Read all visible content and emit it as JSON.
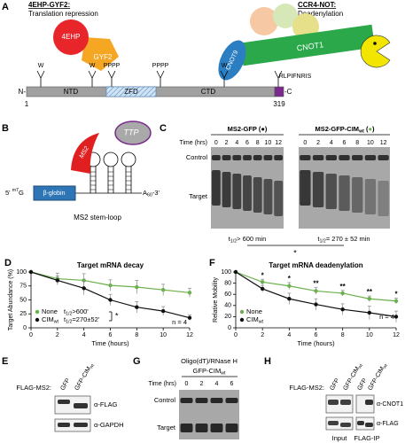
{
  "panels": {
    "A": {
      "letter": "A",
      "left_title": "4EHP-GYF2:",
      "left_subtitle": "Translation repression",
      "right_title": "CCR4-NOT:",
      "right_subtitle": "Deadenylation",
      "proteins": [
        "4EHP",
        "GYF2",
        "CNOT9",
        "CNOT1"
      ],
      "n_term": "N-",
      "c_term": "-C",
      "start": 1,
      "end": 319,
      "domains": [
        "NTD",
        "ZFD",
        "CTD"
      ],
      "motif": "RLPIFNRIS",
      "flags": [
        "W",
        "W",
        "PPPP",
        "PPPP",
        "W"
      ]
    },
    "B": {
      "letter": "B",
      "protein": "TTP",
      "tag": "MS2",
      "gene": "β-globin",
      "five_prime": [
        "5' ",
        "m7",
        "G"
      ],
      "three_prime": [
        "A",
        "60",
        "-3'"
      ],
      "stem_loop_label": "MS2 stem-loop"
    },
    "C": {
      "letter": "C",
      "title_1": "MS2-GFP (●)",
      "title_2": [
        "MS2-GFP-CIM",
        "wt",
        " (",
        "●",
        ")"
      ],
      "time_label": "Time (hrs)",
      "times": [
        0,
        2,
        4,
        6,
        8,
        10,
        12
      ],
      "rows": [
        "Control",
        "Target"
      ],
      "half_life_symbol": [
        "t",
        "1/2"
      ],
      "half_life_1": "> 600 min",
      "half_life_2": "= 270 ± 52 min",
      "significance": "*"
    },
    "E": {
      "letter": "E",
      "construct": "FLAG-MS2:",
      "lanes": [
        "GFP",
        "GFP-CIM"
      ],
      "lane_sub": "wt",
      "antibodies": [
        "α-FLAG",
        "α-GAPDH"
      ]
    },
    "G": {
      "letter": "G",
      "treatment": "Oligo(dT)/RNase H",
      "construct": [
        "GFP-CIM",
        "wt"
      ],
      "time_label": "Time (hrs)",
      "times": [
        0,
        2,
        4,
        6
      ],
      "rows": [
        "Control",
        "Target"
      ]
    },
    "H": {
      "letter": "H",
      "construct": "FLAG-MS2:",
      "lanes": [
        "GFP",
        "GFP-CIM"
      ],
      "lane_sub": "wt",
      "antibodies": [
        "α-CNOT1",
        "α-FLAG"
      ],
      "groups": [
        "Input",
        "FLAG-IP"
      ]
    }
  },
  "chart_data": [
    {
      "type": "line",
      "letter": "D",
      "title": "Target mRNA decay",
      "xlabel": "Time (hours)",
      "ylabel": "Target Abundance (%)",
      "x": [
        0,
        2,
        4,
        6,
        8,
        10,
        12
      ],
      "xlim": [
        0,
        12
      ],
      "xticks": [
        0,
        2,
        4,
        6,
        8,
        10,
        12
      ],
      "ylim": [
        0,
        100
      ],
      "yticks": [
        0,
        25,
        50,
        75,
        100
      ],
      "series": [
        {
          "name": "None",
          "color": "#6ab04c",
          "values": [
            100,
            88,
            85,
            76,
            73,
            68,
            63
          ],
          "errors": [
            0,
            10,
            12,
            10,
            12,
            10,
            8
          ]
        },
        {
          "name": "CIM",
          "name_sub": "wt",
          "color": "#111111",
          "values": [
            100,
            85,
            71,
            50,
            37,
            30,
            18
          ],
          "errors": [
            0,
            8,
            12,
            10,
            10,
            8,
            5
          ]
        }
      ],
      "annotations": {
        "t": "t",
        "half": "1/2",
        "none": ">600'",
        "cim": "=270±52'",
        "significance": "*",
        "n": "n = 4"
      }
    },
    {
      "type": "line",
      "letter": "F",
      "title": "Target mRNA deadenylation",
      "xlabel": "Time (hours)",
      "ylabel": "Relative Mobility",
      "x": [
        0,
        2,
        4,
        6,
        8,
        10,
        12
      ],
      "xlim": [
        0,
        12
      ],
      "xticks": [
        0,
        2,
        4,
        6,
        8,
        10,
        12
      ],
      "ylim": [
        0,
        100
      ],
      "yticks": [
        0,
        20,
        40,
        60,
        80,
        100
      ],
      "series": [
        {
          "name": "None",
          "color": "#6ab04c",
          "values": [
            100,
            82,
            75,
            66,
            62,
            52,
            48
          ],
          "errors": [
            0,
            5,
            6,
            6,
            5,
            5,
            5
          ]
        },
        {
          "name": "CIM",
          "name_sub": "wt",
          "color": "#111111",
          "values": [
            100,
            70,
            52,
            42,
            33,
            27,
            20
          ],
          "errors": [
            0,
            6,
            10,
            10,
            10,
            12,
            10
          ]
        }
      ],
      "stars": [
        null,
        "*",
        "*",
        "**",
        "**",
        "**",
        "*"
      ],
      "annotations": {
        "n": "n = 4"
      }
    }
  ]
}
